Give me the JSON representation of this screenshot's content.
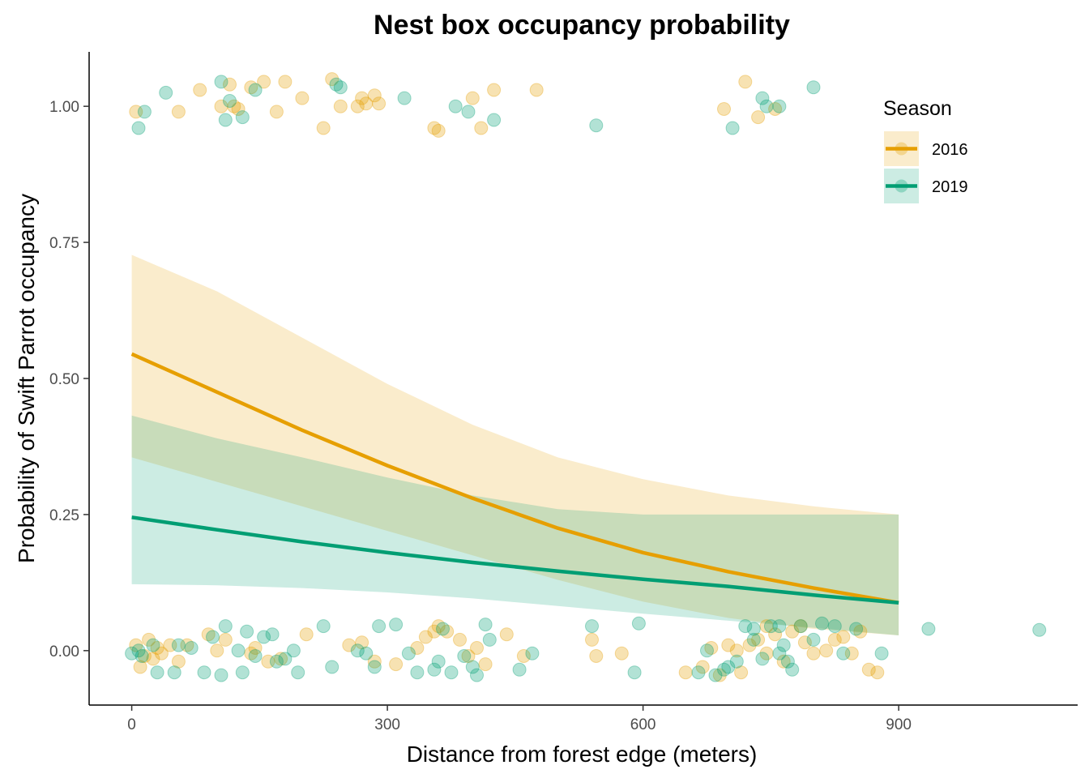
{
  "chart_data": {
    "type": "scatter",
    "title": "Nest box occupancy probability",
    "xlabel": "Distance from forest edge (meters)",
    "ylabel": "Probability of Swift Parrot occupancy",
    "xlim": [
      -50,
      1110
    ],
    "ylim": [
      -0.1,
      1.1
    ],
    "x_ticks": [
      0,
      300,
      600,
      900
    ],
    "x_tick_labels": [
      "0",
      "300",
      "600",
      "900"
    ],
    "y_ticks": [
      0,
      0.25,
      0.5,
      0.75,
      1.0
    ],
    "y_tick_labels": [
      "0.00",
      "0.25",
      "0.50",
      "0.75",
      "1.00"
    ],
    "grid": false,
    "legend": {
      "title": "Season",
      "position": "top-right",
      "items": [
        "2016",
        "2019"
      ]
    },
    "series": [
      {
        "name": "2016",
        "color": "#E69F00",
        "fit": {
          "x": [
            0,
            100,
            200,
            300,
            400,
            500,
            600,
            700,
            800,
            900
          ],
          "y": [
            0.545,
            0.475,
            0.405,
            0.34,
            0.28,
            0.225,
            0.18,
            0.145,
            0.115,
            0.088
          ],
          "lower": [
            0.355,
            0.31,
            0.265,
            0.22,
            0.175,
            0.13,
            0.09,
            0.06,
            0.04,
            0.028
          ],
          "upper": [
            0.727,
            0.66,
            0.575,
            0.49,
            0.415,
            0.355,
            0.315,
            0.285,
            0.265,
            0.25
          ]
        },
        "points": [
          [
            5,
            0.99
          ],
          [
            55,
            0.99
          ],
          [
            80,
            1.03
          ],
          [
            105,
            1.0
          ],
          [
            115,
            1.04
          ],
          [
            120,
            1.0
          ],
          [
            125,
            0.995
          ],
          [
            140,
            1.035
          ],
          [
            155,
            1.045
          ],
          [
            170,
            0.99
          ],
          [
            180,
            1.045
          ],
          [
            200,
            1.015
          ],
          [
            225,
            0.96
          ],
          [
            235,
            1.05
          ],
          [
            245,
            1.0
          ],
          [
            265,
            1.0
          ],
          [
            270,
            1.015
          ],
          [
            275,
            1.005
          ],
          [
            285,
            1.02
          ],
          [
            290,
            1.005
          ],
          [
            355,
            0.96
          ],
          [
            360,
            0.955
          ],
          [
            400,
            1.015
          ],
          [
            410,
            0.96
          ],
          [
            425,
            1.03
          ],
          [
            475,
            1.03
          ],
          [
            695,
            0.995
          ],
          [
            720,
            1.045
          ],
          [
            735,
            0.98
          ],
          [
            755,
            0.995
          ],
          [
            5,
            0.01
          ],
          [
            10,
            -0.03
          ],
          [
            15,
            -0.01
          ],
          [
            20,
            0.02
          ],
          [
            25,
            -0.015
          ],
          [
            30,
            0.005
          ],
          [
            35,
            -0.005
          ],
          [
            45,
            0.01
          ],
          [
            55,
            -0.02
          ],
          [
            65,
            0.01
          ],
          [
            90,
            0.03
          ],
          [
            100,
            0.0
          ],
          [
            110,
            0.02
          ],
          [
            140,
            -0.005
          ],
          [
            145,
            0.005
          ],
          [
            160,
            -0.02
          ],
          [
            175,
            -0.015
          ],
          [
            205,
            0.03
          ],
          [
            255,
            0.01
          ],
          [
            270,
            0.015
          ],
          [
            285,
            -0.02
          ],
          [
            310,
            -0.025
          ],
          [
            335,
            0.005
          ],
          [
            345,
            0.025
          ],
          [
            355,
            0.035
          ],
          [
            360,
            0.045
          ],
          [
            370,
            0.035
          ],
          [
            385,
            0.02
          ],
          [
            395,
            -0.01
          ],
          [
            405,
            0.005
          ],
          [
            415,
            -0.025
          ],
          [
            440,
            0.03
          ],
          [
            460,
            -0.01
          ],
          [
            540,
            0.02
          ],
          [
            545,
            -0.01
          ],
          [
            575,
            -0.005
          ],
          [
            650,
            -0.04
          ],
          [
            670,
            -0.03
          ],
          [
            680,
            0.005
          ],
          [
            690,
            -0.045
          ],
          [
            700,
            0.01
          ],
          [
            710,
            0.0
          ],
          [
            715,
            -0.04
          ],
          [
            725,
            0.01
          ],
          [
            735,
            0.02
          ],
          [
            745,
            -0.005
          ],
          [
            755,
            0.03
          ],
          [
            765,
            -0.02
          ],
          [
            775,
            0.035
          ],
          [
            785,
            0.045
          ],
          [
            790,
            0.015
          ],
          [
            800,
            -0.005
          ],
          [
            815,
            0.0
          ],
          [
            825,
            0.02
          ],
          [
            835,
            0.025
          ],
          [
            845,
            -0.005
          ],
          [
            855,
            0.035
          ],
          [
            865,
            -0.035
          ],
          [
            875,
            -0.04
          ],
          [
            745,
            0.045
          ]
        ]
      },
      {
        "name": "2019",
        "color": "#009E73",
        "fit": {
          "x": [
            0,
            100,
            200,
            300,
            400,
            500,
            600,
            700,
            800,
            900
          ],
          "y": [
            0.245,
            0.222,
            0.2,
            0.18,
            0.162,
            0.146,
            0.131,
            0.118,
            0.102,
            0.088
          ],
          "lower": [
            0.122,
            0.12,
            0.115,
            0.107,
            0.096,
            0.082,
            0.068,
            0.055,
            0.042,
            0.028
          ],
          "upper": [
            0.432,
            0.39,
            0.355,
            0.318,
            0.285,
            0.26,
            0.25,
            0.25,
            0.25,
            0.25
          ]
        },
        "points": [
          [
            8,
            0.96
          ],
          [
            15,
            0.99
          ],
          [
            40,
            1.025
          ],
          [
            105,
            1.045
          ],
          [
            110,
            0.975
          ],
          [
            115,
            1.01
          ],
          [
            130,
            0.98
          ],
          [
            145,
            1.03
          ],
          [
            240,
            1.04
          ],
          [
            245,
            1.035
          ],
          [
            320,
            1.015
          ],
          [
            380,
            1.0
          ],
          [
            395,
            0.99
          ],
          [
            425,
            0.975
          ],
          [
            545,
            0.965
          ],
          [
            705,
            0.96
          ],
          [
            740,
            1.015
          ],
          [
            745,
            1.0
          ],
          [
            760,
            1.0
          ],
          [
            800,
            1.035
          ],
          [
            0,
            -0.005
          ],
          [
            8,
            0.0
          ],
          [
            12,
            -0.01
          ],
          [
            25,
            0.01
          ],
          [
            30,
            -0.04
          ],
          [
            50,
            -0.04
          ],
          [
            55,
            0.01
          ],
          [
            70,
            0.005
          ],
          [
            85,
            -0.04
          ],
          [
            95,
            0.025
          ],
          [
            105,
            -0.045
          ],
          [
            110,
            0.045
          ],
          [
            125,
            0.0
          ],
          [
            130,
            -0.04
          ],
          [
            135,
            0.035
          ],
          [
            145,
            -0.01
          ],
          [
            155,
            0.025
          ],
          [
            165,
            0.03
          ],
          [
            170,
            -0.02
          ],
          [
            180,
            -0.015
          ],
          [
            190,
            0.0
          ],
          [
            195,
            -0.04
          ],
          [
            225,
            0.045
          ],
          [
            235,
            -0.03
          ],
          [
            265,
            0.0
          ],
          [
            275,
            -0.005
          ],
          [
            285,
            -0.03
          ],
          [
            290,
            0.045
          ],
          [
            310,
            0.048
          ],
          [
            325,
            -0.005
          ],
          [
            335,
            -0.04
          ],
          [
            355,
            -0.035
          ],
          [
            360,
            -0.02
          ],
          [
            365,
            0.04
          ],
          [
            375,
            -0.04
          ],
          [
            390,
            -0.01
          ],
          [
            400,
            -0.03
          ],
          [
            405,
            -0.045
          ],
          [
            415,
            0.048
          ],
          [
            420,
            0.02
          ],
          [
            455,
            -0.035
          ],
          [
            470,
            -0.005
          ],
          [
            540,
            0.045
          ],
          [
            590,
            -0.04
          ],
          [
            595,
            0.05
          ],
          [
            665,
            -0.04
          ],
          [
            675,
            0.0
          ],
          [
            685,
            -0.045
          ],
          [
            695,
            -0.035
          ],
          [
            700,
            -0.03
          ],
          [
            710,
            -0.02
          ],
          [
            720,
            0.045
          ],
          [
            730,
            0.02
          ],
          [
            740,
            -0.015
          ],
          [
            750,
            0.045
          ],
          [
            760,
            -0.005
          ],
          [
            765,
            0.01
          ],
          [
            775,
            -0.035
          ],
          [
            785,
            0.045
          ],
          [
            800,
            0.02
          ],
          [
            810,
            0.05
          ],
          [
            825,
            0.045
          ],
          [
            835,
            -0.005
          ],
          [
            850,
            0.04
          ],
          [
            880,
            -0.005
          ],
          [
            935,
            0.04
          ],
          [
            1065,
            0.038
          ],
          [
            770,
            -0.02
          ],
          [
            730,
            0.04
          ],
          [
            760,
            0.045
          ]
        ]
      }
    ]
  }
}
